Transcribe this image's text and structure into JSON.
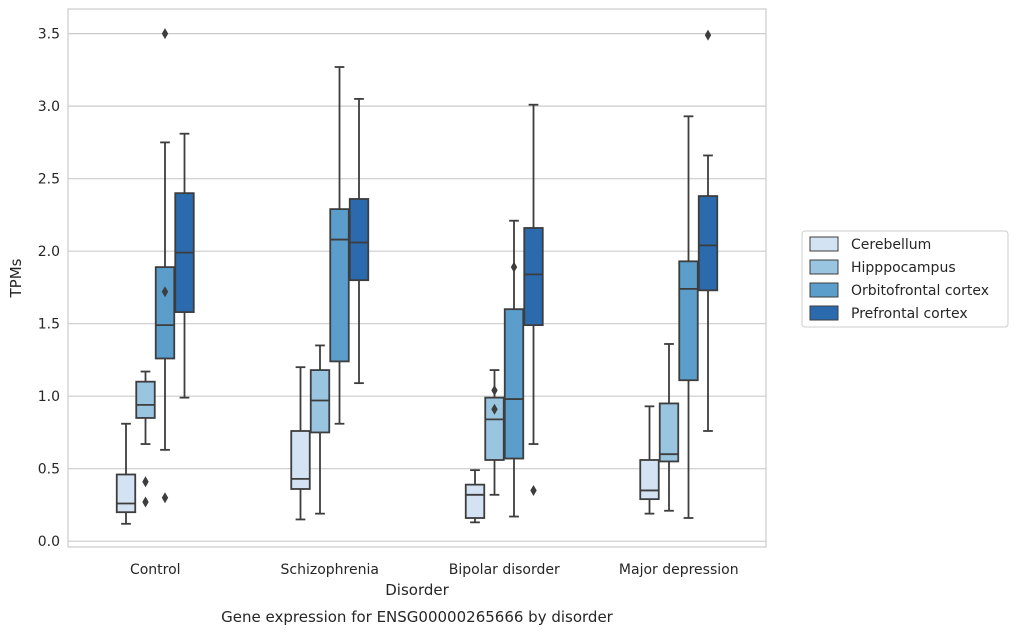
{
  "chart_data": {
    "type": "box",
    "caption": "Gene expression for ENSG00000265666 by disorder",
    "xlabel": "Disorder",
    "ylabel": "TPMs",
    "categories": [
      "Control",
      "Schizophrenia",
      "Bipolar disorder",
      "Major depression"
    ],
    "ylim": [
      -0.04,
      3.67
    ],
    "yticks": [
      "0.0",
      "0.5",
      "1.0",
      "1.5",
      "2.0",
      "2.5",
      "3.0",
      "3.5"
    ],
    "grid": true,
    "legend_position": "right",
    "series": [
      {
        "name": "Cerebellum",
        "color": "#d3e3f3",
        "boxes": [
          {
            "whisker_low": 0.12,
            "q1": 0.2,
            "median": 0.26,
            "q3": 0.46,
            "whisker_high": 0.81,
            "outliers": []
          },
          {
            "whisker_low": 0.15,
            "q1": 0.36,
            "median": 0.43,
            "q3": 0.76,
            "whisker_high": 1.2,
            "outliers": []
          },
          {
            "whisker_low": 0.13,
            "q1": 0.16,
            "median": 0.32,
            "q3": 0.39,
            "whisker_high": 0.49,
            "outliers": []
          },
          {
            "whisker_low": 0.19,
            "q1": 0.29,
            "median": 0.35,
            "q3": 0.56,
            "whisker_high": 0.93,
            "outliers": []
          }
        ]
      },
      {
        "name": "Hipppocampus",
        "color": "#99c5e0",
        "boxes": [
          {
            "whisker_low": 0.67,
            "q1": 0.85,
            "median": 0.94,
            "q3": 1.1,
            "whisker_high": 1.17,
            "outliers": [
              0.41,
              0.27
            ]
          },
          {
            "whisker_low": 0.19,
            "q1": 0.75,
            "median": 0.97,
            "q3": 1.18,
            "whisker_high": 1.35,
            "outliers": []
          },
          {
            "whisker_low": 0.32,
            "q1": 0.56,
            "median": 0.84,
            "q3": 0.99,
            "whisker_high": 1.18,
            "outliers": [
              1.04,
              0.91
            ]
          },
          {
            "whisker_low": 0.21,
            "q1": 0.55,
            "median": 0.6,
            "q3": 0.95,
            "whisker_high": 1.36,
            "outliers": []
          }
        ]
      },
      {
        "name": "Orbitofrontal cortex",
        "color": "#5b9ecb",
        "boxes": [
          {
            "whisker_low": 0.63,
            "q1": 1.26,
            "median": 1.49,
            "q3": 1.89,
            "whisker_high": 2.75,
            "outliers": [
              1.72,
              3.5,
              0.3
            ]
          },
          {
            "whisker_low": 0.81,
            "q1": 1.24,
            "median": 2.08,
            "q3": 2.29,
            "whisker_high": 3.27,
            "outliers": []
          },
          {
            "whisker_low": 0.17,
            "q1": 0.57,
            "median": 0.98,
            "q3": 1.6,
            "whisker_high": 2.21,
            "outliers": [
              1.89
            ]
          },
          {
            "whisker_low": 0.16,
            "q1": 1.11,
            "median": 1.74,
            "q3": 1.93,
            "whisker_high": 2.93,
            "outliers": []
          }
        ]
      },
      {
        "name": "Prefrontal cortex",
        "color": "#2a6aad",
        "boxes": [
          {
            "whisker_low": 0.99,
            "q1": 1.58,
            "median": 1.99,
            "q3": 2.4,
            "whisker_high": 2.81,
            "outliers": []
          },
          {
            "whisker_low": 1.09,
            "q1": 1.8,
            "median": 2.06,
            "q3": 2.36,
            "whisker_high": 3.05,
            "outliers": []
          },
          {
            "whisker_low": 0.67,
            "q1": 1.49,
            "median": 1.84,
            "q3": 2.16,
            "whisker_high": 3.01,
            "outliers": [
              0.35
            ]
          },
          {
            "whisker_low": 0.76,
            "q1": 1.73,
            "median": 2.04,
            "q3": 2.38,
            "whisker_high": 2.66,
            "outliers": [
              3.49
            ]
          }
        ]
      }
    ]
  }
}
